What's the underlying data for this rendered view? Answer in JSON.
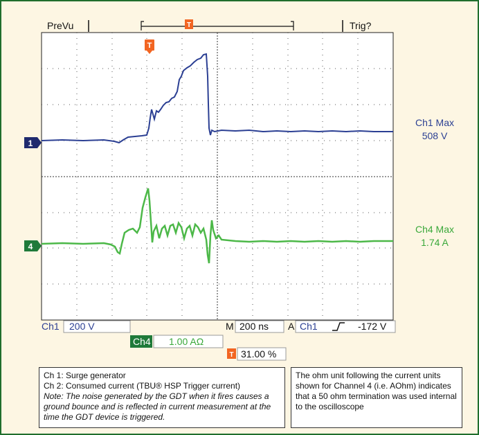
{
  "header": {
    "mode": "PreVu",
    "trigger_status": "Trig?"
  },
  "markers": {
    "trigger_marker": "T",
    "ch1_marker": "1",
    "ch4_marker": "4"
  },
  "readouts": {
    "ch1_label": "Ch1",
    "ch1_scale": "200 V",
    "timebase_label": "M",
    "timebase": "200 ns",
    "acq_label": "A",
    "acq_channel": "Ch1",
    "trigger_slope_icon": "rising-edge-icon",
    "trigger_level": "-172 V",
    "ch4_label": "Ch4",
    "ch4_scale": "1.00 AΩ",
    "trigger_position": "31.00 %"
  },
  "measurements": {
    "ch1_title": "Ch1 Max",
    "ch1_value": "508 V",
    "ch4_title": "Ch4 Max",
    "ch4_value": "1.74 A"
  },
  "notes": {
    "left_line1": "Ch 1:  Surge generator",
    "left_line2": "Ch 2:  Consumed current (TBU® HSP Trigger current)",
    "left_note": "Note: The noise generated by the GDT when it fires causes a ground bounce and is reflected in current measurement at the time the GDT device is triggered.",
    "right_note": "The ohm unit following the current units shown for Channel 4 (i.e. AOhm) indicates that a 50 ohm termination was used internal to the oscilloscope"
  },
  "colors": {
    "frame": "#1f6e2c",
    "ch1": "#2b3f93",
    "ch4": "#4cb848",
    "trigger": "#f26522",
    "background": "#fdf6e3"
  }
}
